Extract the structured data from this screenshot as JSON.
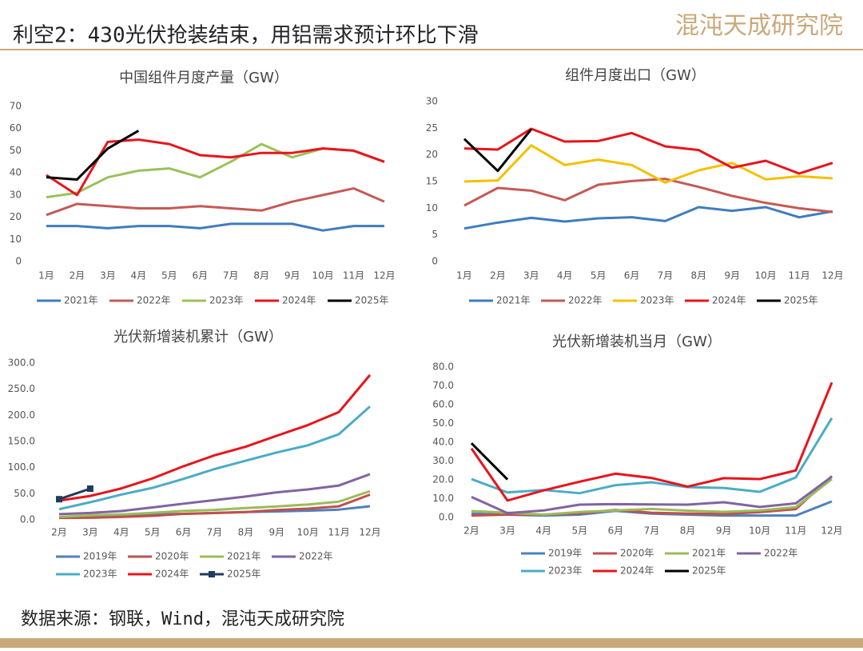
{
  "header": {
    "title": "利空2：430光伏抢装结束，用铝需求预计环比下滑",
    "logo": "混沌天成研究院"
  },
  "footer": {
    "source": "数据来源：钢联，Wind，混沌天成研究院"
  },
  "chart_data": [
    {
      "type": "line",
      "title": "中国组件月度产量（GW）",
      "categories": [
        "1月",
        "2月",
        "3月",
        "4月",
        "5月",
        "6月",
        "7月",
        "8月",
        "9月",
        "10月",
        "11月",
        "12月"
      ],
      "ylim": [
        0,
        70
      ],
      "yticks": [
        0,
        10,
        20,
        30,
        40,
        50,
        60,
        70
      ],
      "series": [
        {
          "name": "2021年",
          "color": "#3f7cbf",
          "values": [
            16,
            16,
            15,
            16,
            16,
            15,
            17,
            17,
            17,
            14,
            16,
            16
          ]
        },
        {
          "name": "2022年",
          "color": "#c55a55",
          "values": [
            21,
            26,
            25,
            24,
            24,
            25,
            24,
            23,
            27,
            30,
            33,
            27
          ]
        },
        {
          "name": "2023年",
          "color": "#9bc15a",
          "values": [
            29,
            31,
            38,
            41,
            42,
            38,
            45,
            53,
            47,
            51,
            50,
            45
          ]
        },
        {
          "name": "2024年",
          "color": "#e8141b",
          "values": [
            39,
            30,
            54,
            55,
            53,
            48,
            47,
            49,
            49,
            51,
            50,
            45
          ]
        },
        {
          "name": "2025年",
          "color": "#000000",
          "values": [
            38,
            37,
            51,
            59,
            null,
            null,
            null,
            null,
            null,
            null,
            null,
            null
          ]
        }
      ]
    },
    {
      "type": "line",
      "title": "组件月度出口（GW）",
      "categories": [
        "1月",
        "2月",
        "3月",
        "4月",
        "5月",
        "6月",
        "7月",
        "8月",
        "9月",
        "10月",
        "11月",
        "12月"
      ],
      "ylim": [
        0,
        30
      ],
      "yticks": [
        0,
        5,
        10,
        15,
        20,
        25,
        30
      ],
      "series": [
        {
          "name": "2021年",
          "color": "#3f7cbf",
          "values": [
            6.2,
            7.3,
            8.2,
            7.5,
            8.1,
            8.3,
            7.6,
            10.2,
            9.5,
            10.2,
            8.3,
            9.4
          ]
        },
        {
          "name": "2022年",
          "color": "#c55a55",
          "values": [
            10.5,
            13.8,
            13.3,
            11.5,
            14.4,
            15.1,
            15.5,
            14.0,
            12.3,
            11.0,
            10.0,
            9.3
          ]
        },
        {
          "name": "2023年",
          "color": "#f5c000",
          "values": [
            15,
            15.2,
            21.8,
            18.1,
            19.1,
            18.1,
            14.8,
            17.1,
            18.5,
            15.4,
            16.0,
            15.6
          ]
        },
        {
          "name": "2024年",
          "color": "#e8141b",
          "values": [
            21.2,
            21,
            24.9,
            22.5,
            22.6,
            24.1,
            21.6,
            20.9,
            17.6,
            18.9,
            16.5,
            18.5
          ]
        },
        {
          "name": "2025年",
          "color": "#000000",
          "values": [
            23,
            17,
            24.8,
            null,
            null,
            null,
            null,
            null,
            null,
            null,
            null,
            null
          ]
        }
      ]
    },
    {
      "type": "line",
      "title": "光伏新增装机累计（GW）",
      "categories": [
        "2月",
        "3月",
        "4月",
        "5月",
        "6月",
        "7月",
        "8月",
        "9月",
        "10月",
        "11月",
        "12月"
      ],
      "ylim": [
        0,
        300
      ],
      "yticks": [
        {
          "value": 0,
          "label": "0.0"
        },
        {
          "value": 50,
          "label": "50.0"
        },
        {
          "value": 100,
          "label": "100.0"
        },
        {
          "value": 150,
          "label": "150.0"
        },
        {
          "value": 200,
          "label": "200.0"
        },
        {
          "value": 250,
          "label": "250.0"
        },
        {
          "value": 300,
          "label": "300.0"
        }
      ],
      "series": [
        {
          "name": "2019年",
          "color": "#4f81bd",
          "values": [
            5,
            5.2,
            7.6,
            10.4,
            11.4,
            13.2,
            14.9,
            16,
            17.5,
            19.6,
            26
          ]
        },
        {
          "name": "2020年",
          "color": "#c0504d",
          "values": [
            3.6,
            4,
            5.5,
            7.6,
            11.5,
            13,
            15,
            18.7,
            21.5,
            25.9,
            48.2
          ]
        },
        {
          "name": "2021年",
          "color": "#9bbb59",
          "values": [
            5.5,
            8.7,
            10.4,
            13.3,
            17,
            19,
            22.6,
            25.6,
            29.3,
            34.8,
            54.9
          ]
        },
        {
          "name": "2022年",
          "color": "#8064a2",
          "values": [
            10.9,
            13.2,
            16.9,
            23.7,
            30.9,
            37.7,
            44.5,
            52.6,
            58.2,
            65.7,
            87.4
          ]
        },
        {
          "name": "2023年",
          "color": "#4bacc6",
          "values": [
            20.4,
            33.7,
            48.3,
            61.2,
            78.4,
            97.2,
            113.2,
            128.9,
            142.6,
            163.9,
            216.9
          ]
        },
        {
          "name": "2024年",
          "color": "#e8141b",
          "values": [
            36.7,
            45.7,
            60.1,
            79.2,
            102.5,
            123.5,
            139.9,
            160.9,
            181.3,
            206.3,
            277.2
          ]
        },
        {
          "name": "2025年",
          "color": "#1f3c5a",
          "marker": "square",
          "values": [
            39.5,
            59.7,
            null,
            null,
            null,
            null,
            null,
            null,
            null,
            null,
            null
          ]
        }
      ]
    },
    {
      "type": "line",
      "title": "光伏新增装机当月（GW）",
      "categories": [
        "2月",
        "3月",
        "4月",
        "5月",
        "6月",
        "7月",
        "8月",
        "9月",
        "10月",
        "11月",
        "12月"
      ],
      "ylim": [
        0,
        80
      ],
      "yticks": [
        {
          "value": 0,
          "label": "0.0"
        },
        {
          "value": 10,
          "label": "10.0"
        },
        {
          "value": 20,
          "label": "20.0"
        },
        {
          "value": 30,
          "label": "30.0"
        },
        {
          "value": 40,
          "label": "40.0"
        },
        {
          "value": 50,
          "label": "50.0"
        },
        {
          "value": 60,
          "label": "60.0"
        },
        {
          "value": 70,
          "label": "70.0"
        },
        {
          "value": 80,
          "label": "80.0"
        }
      ],
      "series": [
        {
          "name": "2019年",
          "color": "#4f81bd",
          "values": [
            2,
            1.5,
            1,
            1.5,
            3.5,
            2,
            1.5,
            1,
            1,
            1,
            8.5
          ]
        },
        {
          "name": "2020年",
          "color": "#c0504d",
          "values": [
            1,
            1.5,
            1.5,
            2.2,
            4,
            2.5,
            2.1,
            1.8,
            2.8,
            4.4,
            22
          ]
        },
        {
          "name": "2021年",
          "color": "#9bbb59",
          "values": [
            3.4,
            2.5,
            1.5,
            2.9,
            3.7,
            4.5,
            3.6,
            3,
            3.7,
            5.5,
            20.4
          ]
        },
        {
          "name": "2022年",
          "color": "#8064a2",
          "values": [
            10.9,
            2.3,
            3.7,
            6.8,
            7.1,
            6.9,
            6.8,
            8.1,
            5.6,
            7.5,
            21.7
          ]
        },
        {
          "name": "2023年",
          "color": "#4bacc6",
          "values": [
            20.4,
            13.3,
            14.6,
            12.9,
            17.2,
            18.7,
            16.1,
            15.7,
            13.6,
            21.3,
            52.9
          ]
        },
        {
          "name": "2024年",
          "color": "#e8141b",
          "values": [
            36.7,
            9,
            14.4,
            19,
            23.3,
            21,
            16.4,
            20.9,
            20.4,
            25,
            71.8
          ]
        },
        {
          "name": "2025年",
          "color": "#000000",
          "values": [
            39.5,
            20.2,
            null,
            null,
            null,
            null,
            null,
            null,
            null,
            null,
            null
          ]
        }
      ]
    }
  ]
}
